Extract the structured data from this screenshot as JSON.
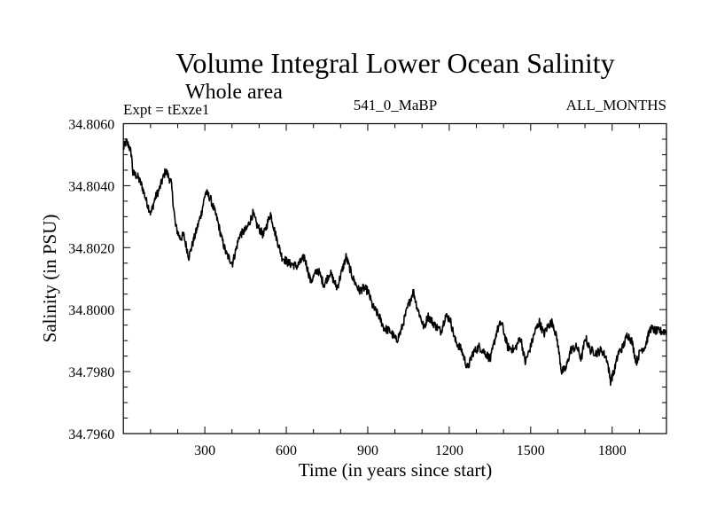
{
  "chart_data": {
    "type": "line",
    "title": "Volume Integral Lower Ocean Salinity",
    "subtitle": "Whole area",
    "annotations": {
      "left": "Expt = tExze1",
      "center": "541_0_MaBP",
      "right": "ALL_MONTHS"
    },
    "xlabel": "Time (in years since start)",
    "ylabel": "Salinity (in PSU)",
    "xlim": [
      0,
      2000
    ],
    "ylim": [
      34.796,
      34.806
    ],
    "xticks": [
      300,
      600,
      900,
      1200,
      1500,
      1800
    ],
    "xtick_labels": [
      "300",
      "600",
      "900",
      "1200",
      "1500",
      "1800"
    ],
    "yticks": [
      34.796,
      34.798,
      34.8,
      34.802,
      34.804,
      34.806
    ],
    "ytick_labels": [
      "34.7960",
      "34.7980",
      "34.8000",
      "34.8020",
      "34.8040",
      "34.8060"
    ],
    "grid": false,
    "legend": null,
    "series": [
      {
        "name": "Lower ocean salinity",
        "color": "#000000",
        "x": [
          0,
          10,
          20,
          30,
          35,
          52,
          68,
          85,
          101,
          117,
          133,
          156,
          176,
          192,
          209,
          222,
          241,
          264,
          287,
          303,
          320,
          346,
          362,
          379,
          402,
          428,
          454,
          477,
          493,
          516,
          542,
          558,
          584,
          608,
          640,
          667,
          690,
          716,
          739,
          761,
          787,
          820,
          846,
          869,
          885,
          901,
          918,
          941,
          960,
          983,
          1006,
          1022,
          1048,
          1068,
          1081,
          1108,
          1121,
          1147,
          1170,
          1186,
          1203,
          1222,
          1245,
          1268,
          1287,
          1310,
          1333,
          1352,
          1375,
          1392,
          1415,
          1440,
          1463,
          1480,
          1496,
          1516,
          1532,
          1549,
          1565,
          1581,
          1598,
          1614,
          1630,
          1647,
          1670,
          1686,
          1702,
          1719,
          1742,
          1761,
          1781,
          1794,
          1807,
          1823,
          1840,
          1856,
          1872,
          1889,
          1905,
          1921,
          1941,
          1964,
          1980,
          2000
        ],
        "values": [
          34.8052,
          34.8054,
          34.8053,
          34.805,
          34.8044,
          34.8043,
          34.804,
          34.8035,
          34.8031,
          34.8036,
          34.8039,
          34.8045,
          34.8041,
          34.8027,
          34.8023,
          34.8024,
          34.8017,
          34.8024,
          34.8031,
          34.8038,
          34.8036,
          34.8029,
          34.8023,
          34.8018,
          34.8015,
          34.8024,
          34.8026,
          34.8031,
          34.8027,
          34.8024,
          34.8031,
          34.8025,
          34.8017,
          34.8015,
          34.8014,
          34.8017,
          34.8009,
          34.8013,
          34.8008,
          34.8012,
          34.8007,
          34.8017,
          34.801,
          34.8006,
          34.8007,
          34.8006,
          34.8001,
          34.7998,
          34.7994,
          34.7993,
          34.799,
          34.7993,
          34.8001,
          34.8006,
          34.8001,
          34.7994,
          34.7998,
          34.7995,
          34.7993,
          34.7998,
          34.7997,
          34.799,
          34.7987,
          34.7981,
          34.7986,
          34.7988,
          34.7986,
          34.7984,
          34.7993,
          34.7996,
          34.7988,
          34.7987,
          34.7991,
          34.7983,
          34.7987,
          34.7993,
          34.7996,
          34.7992,
          34.7995,
          34.7996,
          34.799,
          34.798,
          34.7981,
          34.7987,
          34.7988,
          34.7984,
          34.7991,
          34.7987,
          34.7986,
          34.7987,
          34.7984,
          34.7977,
          34.798,
          34.7986,
          34.7988,
          34.7992,
          34.799,
          34.7983,
          34.7987,
          34.7988,
          34.7994,
          34.7993,
          34.7993,
          34.7993
        ]
      }
    ]
  }
}
